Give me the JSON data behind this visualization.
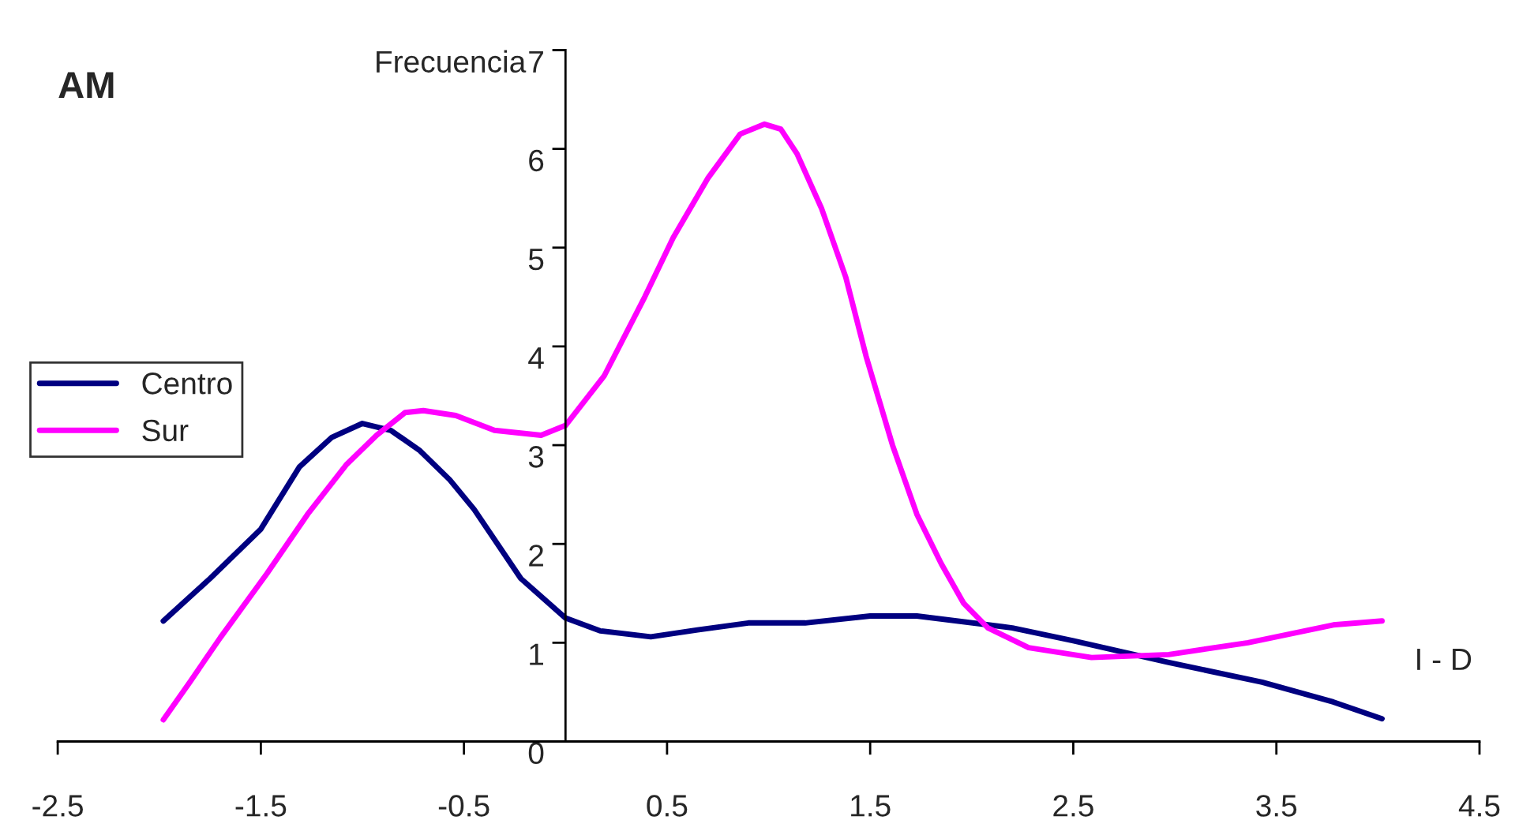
{
  "chart_data": {
    "type": "line",
    "title": "AM",
    "ylabel": "Frecuencia",
    "xlabel": "I - D",
    "xlim": [
      -2.5,
      4.5
    ],
    "xticks": [
      -2.5,
      -1.5,
      -0.5,
      0.5,
      1.5,
      2.5,
      3.5,
      4.5
    ],
    "ylim": [
      0,
      7
    ],
    "yticks": [
      0,
      1,
      2,
      3,
      4,
      5,
      6,
      7
    ],
    "grid": false,
    "legend": "left",
    "marker": "none",
    "line_style": "solid",
    "series": [
      {
        "name": "Centro",
        "color": "#000080",
        "x": [
          -1.98,
          -1.75,
          -1.5,
          -1.31,
          -1.15,
          -1.0,
          -0.86,
          -0.72,
          -0.57,
          -0.45,
          -0.22,
          0.0,
          0.17,
          0.42,
          0.65,
          0.9,
          1.18,
          1.5,
          1.73,
          2.2,
          2.5,
          2.97,
          3.43,
          3.78,
          4.02
        ],
        "values": [
          1.22,
          1.65,
          2.15,
          2.78,
          3.08,
          3.22,
          3.15,
          2.95,
          2.65,
          2.35,
          1.65,
          1.25,
          1.12,
          1.06,
          1.13,
          1.2,
          1.2,
          1.27,
          1.27,
          1.15,
          1.02,
          0.8,
          0.6,
          0.4,
          0.23
        ]
      },
      {
        "name": "Sur",
        "color": "#ff00ff",
        "x": [
          -1.98,
          -1.85,
          -1.7,
          -1.47,
          -1.27,
          -1.08,
          -0.93,
          -0.79,
          -0.7,
          -0.54,
          -0.35,
          -0.12,
          0.0,
          0.19,
          0.39,
          0.53,
          0.7,
          0.86,
          0.98,
          1.06,
          1.14,
          1.26,
          1.38,
          1.48,
          1.61,
          1.73,
          1.85,
          1.96,
          2.08,
          2.28,
          2.59,
          2.97,
          3.36,
          3.78,
          4.02
        ],
        "values": [
          0.22,
          0.6,
          1.05,
          1.7,
          2.3,
          2.8,
          3.1,
          3.33,
          3.35,
          3.3,
          3.15,
          3.1,
          3.2,
          3.7,
          4.5,
          5.1,
          5.7,
          6.15,
          6.25,
          6.2,
          5.95,
          5.4,
          4.7,
          3.9,
          3.0,
          2.3,
          1.8,
          1.4,
          1.15,
          0.95,
          0.85,
          0.88,
          1.0,
          1.18,
          1.22
        ]
      }
    ]
  }
}
